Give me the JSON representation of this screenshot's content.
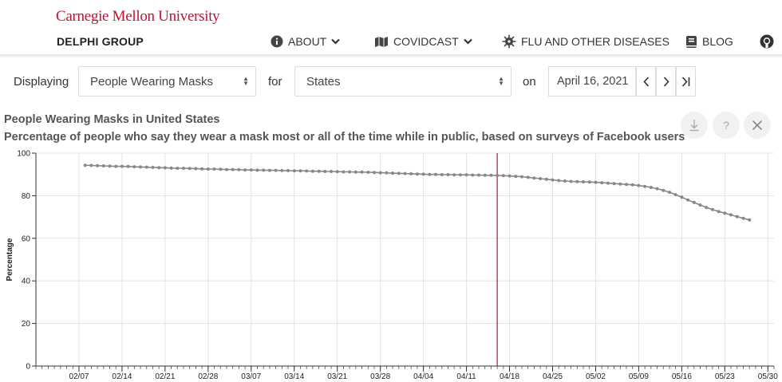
{
  "header": {
    "org": "Carnegie Mellon University",
    "group": "DELPHI GROUP",
    "nav": [
      {
        "label": "ABOUT",
        "icon": "info-icon",
        "dropdown": true
      },
      {
        "label": "COVIDCAST",
        "icon": "map-icon",
        "dropdown": true
      },
      {
        "label": "FLU AND OTHER DISEASES",
        "icon": "gear-icon",
        "dropdown": false
      },
      {
        "label": "BLOG",
        "icon": "book-icon",
        "dropdown": false
      }
    ],
    "accent": "#c41230"
  },
  "controls": {
    "displaying_label": "Displaying",
    "signal_value": "People Wearing Masks",
    "for_label": "for",
    "region_value": "States",
    "on_label": "on",
    "date_value": "April 16, 2021"
  },
  "chart_title": "People Wearing Masks in United States",
  "chart_subtitle": "Percentage of people who say they wear a mask most or all of the time while in public, based on surveys of Facebook users",
  "chart_data": {
    "type": "line",
    "ylabel": "Percentage",
    "ylim": [
      0,
      100
    ],
    "yticks": [
      0,
      20,
      40,
      60,
      80,
      100
    ],
    "x_tick_labels": [
      "02/07",
      "02/14",
      "02/21",
      "02/28",
      "03/07",
      "03/14",
      "03/21",
      "03/28",
      "04/04",
      "04/11",
      "04/18",
      "04/25",
      "05/02",
      "05/09",
      "05/16",
      "05/23",
      "05/30"
    ],
    "x_range": [
      "2021-01-31",
      "2021-05-31"
    ],
    "selected_date": "2021-04-16",
    "marker_color": "#a31f34",
    "line_color": "#888888",
    "series": [
      {
        "start_date": "2021-02-08",
        "values": [
          94.3,
          94.2,
          94.1,
          94.0,
          93.9,
          93.8,
          93.8,
          93.7,
          93.6,
          93.5,
          93.4,
          93.3,
          93.2,
          93.1,
          93.0,
          92.9,
          92.9,
          92.8,
          92.7,
          92.6,
          92.5,
          92.5,
          92.4,
          92.3,
          92.3,
          92.2,
          92.1,
          92.1,
          92.0,
          92.0,
          91.9,
          91.9,
          91.8,
          91.8,
          91.7,
          91.7,
          91.6,
          91.5,
          91.5,
          91.4,
          91.4,
          91.3,
          91.2,
          91.2,
          91.1,
          91.1,
          91.0,
          90.9,
          90.8,
          90.7,
          90.6,
          90.5,
          90.4,
          90.3,
          90.2,
          90.1,
          90.0,
          90.0,
          89.9,
          89.9,
          89.8,
          89.8,
          89.8,
          89.7,
          89.7,
          89.6,
          89.6,
          89.5,
          89.4,
          89.3,
          89.1,
          88.9,
          88.6,
          88.3,
          88.0,
          87.7,
          87.4,
          87.1,
          86.9,
          86.7,
          86.6,
          86.5,
          86.4,
          86.3,
          86.1,
          85.9,
          85.7,
          85.5,
          85.3,
          85.1,
          84.8,
          84.4,
          83.9,
          83.3,
          82.5,
          81.6,
          80.5,
          79.3,
          78.0,
          76.8,
          75.6,
          74.5,
          73.5,
          72.6,
          71.8,
          71.0,
          70.2,
          69.4,
          68.6
        ]
      }
    ]
  }
}
